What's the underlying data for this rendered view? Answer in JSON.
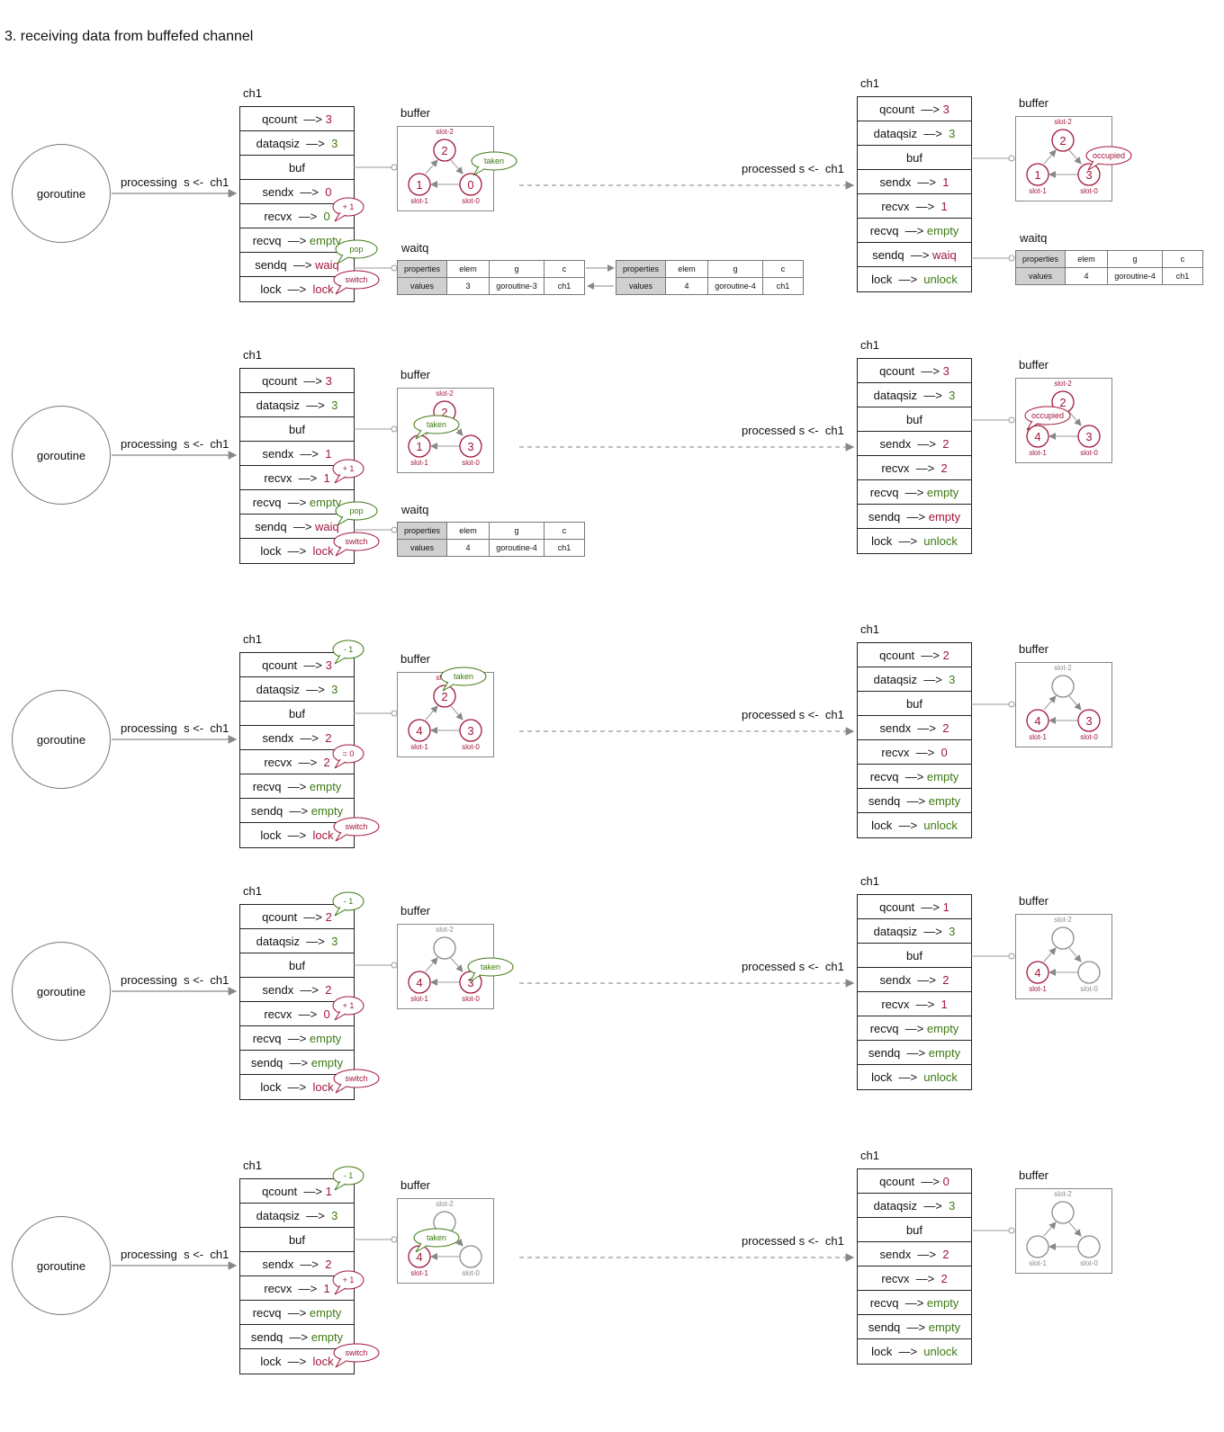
{
  "title": "3. receiving data from buffefed channel",
  "common": {
    "goroutine": "goroutine",
    "processing": "processing  s <-  ch1",
    "processed": "processed s <-  ch1",
    "ch1": "ch1",
    "buffer": "buffer",
    "waitq": "waitq",
    "slot2": "slot-2",
    "slot1": "slot-1",
    "slot0": "slot-0",
    "wq_properties": "properties",
    "wq_values": "values",
    "wq_elem": "elem",
    "wq_g": "g",
    "wq_c": "c"
  },
  "stages": [
    {
      "left": {
        "rows": [
          [
            "qcount  —> ",
            "3",
            "red"
          ],
          [
            "dataqsiz  —>  ",
            "3",
            "green"
          ],
          [
            "buf",
            "",
            ""
          ],
          [
            "sendx  —>  ",
            "0",
            "red"
          ],
          [
            "recvx  —>  ",
            "0",
            "green"
          ],
          [
            "recvq  —> ",
            "empty",
            "green"
          ],
          [
            "sendq  —> ",
            "waiq",
            "red"
          ],
          [
            "lock  —>  ",
            "lock",
            "red"
          ]
        ],
        "buffer": {
          "slot2": "2",
          "slot1": "1",
          "slot0": "0",
          "s2": "red",
          "s1": "red",
          "s0": "red"
        },
        "callouts": [
          {
            "text": "taken",
            "color": "green"
          },
          {
            "text": "+ 1",
            "color": "red"
          },
          {
            "text": "pop",
            "color": "green"
          },
          {
            "text": "switch",
            "color": "red"
          }
        ],
        "waitq": [
          {
            "elem": "3",
            "g": "goroutine-3",
            "c": "ch1"
          },
          {
            "elem": "4",
            "g": "goroutine-4",
            "c": "ch1"
          }
        ]
      },
      "right": {
        "rows": [
          [
            "qcount  —> ",
            "3",
            "red"
          ],
          [
            "dataqsiz  —>  ",
            "3",
            "green"
          ],
          [
            "buf",
            "",
            ""
          ],
          [
            "sendx  —>  ",
            "1",
            "red"
          ],
          [
            "recvx  —>  ",
            "1",
            "red"
          ],
          [
            "recvq  —> ",
            "empty",
            "green"
          ],
          [
            "sendq  —> ",
            "waiq",
            "red"
          ],
          [
            "lock  —>  ",
            "unlock",
            "green"
          ]
        ],
        "buffer": {
          "slot2": "2",
          "slot1": "1",
          "slot0": "3",
          "s2": "red",
          "s1": "red",
          "s0": "red"
        },
        "callouts": [
          {
            "text": "occupied",
            "color": "red"
          }
        ],
        "waitq": [
          {
            "elem": "4",
            "g": "goroutine-4",
            "c": "ch1"
          }
        ]
      }
    },
    {
      "left": {
        "rows": [
          [
            "qcount  —> ",
            "3",
            "red"
          ],
          [
            "dataqsiz  —>  ",
            "3",
            "green"
          ],
          [
            "buf",
            "",
            ""
          ],
          [
            "sendx  —>  ",
            "1",
            "red"
          ],
          [
            "recvx  —>  ",
            "1",
            "red"
          ],
          [
            "recvq  —> ",
            "empty",
            "green"
          ],
          [
            "sendq  —> ",
            "waiq",
            "red"
          ],
          [
            "lock  —>  ",
            "lock",
            "red"
          ]
        ],
        "buffer": {
          "slot2": "2",
          "slot1": "1",
          "slot0": "3",
          "s2": "red",
          "s1": "red",
          "s0": "red"
        },
        "callouts": [
          {
            "text": "taken",
            "color": "green"
          },
          {
            "text": "+ 1",
            "color": "red"
          },
          {
            "text": "pop",
            "color": "green"
          },
          {
            "text": "switch",
            "color": "red"
          }
        ],
        "waitq": [
          {
            "elem": "4",
            "g": "goroutine-4",
            "c": "ch1"
          }
        ]
      },
      "right": {
        "rows": [
          [
            "qcount  —> ",
            "3",
            "red"
          ],
          [
            "dataqsiz  —>  ",
            "3",
            "green"
          ],
          [
            "buf",
            "",
            ""
          ],
          [
            "sendx  —>  ",
            "2",
            "red"
          ],
          [
            "recvx  —>  ",
            "2",
            "red"
          ],
          [
            "recvq  —> ",
            "empty",
            "green"
          ],
          [
            "sendq  —> ",
            "empty",
            "red"
          ],
          [
            "lock  —>  ",
            "unlock",
            "green"
          ]
        ],
        "buffer": {
          "slot2": "2",
          "slot1": "4",
          "slot0": "3",
          "s2": "red",
          "s1": "red",
          "s0": "red"
        },
        "callouts": [
          {
            "text": "occupied",
            "color": "red"
          }
        ],
        "waitq": []
      }
    },
    {
      "left": {
        "rows": [
          [
            "qcount  —> ",
            "3",
            "red"
          ],
          [
            "dataqsiz  —>  ",
            "3",
            "green"
          ],
          [
            "buf",
            "",
            ""
          ],
          [
            "sendx  —>  ",
            "2",
            "red"
          ],
          [
            "recvx  —>  ",
            "2",
            "red"
          ],
          [
            "recvq  —> ",
            "empty",
            "green"
          ],
          [
            "sendq  —> ",
            "empty",
            "green"
          ],
          [
            "lock  —>  ",
            "lock",
            "red"
          ]
        ],
        "buffer": {
          "slot2": "2",
          "slot1": "4",
          "slot0": "3",
          "s2": "red",
          "s1": "red",
          "s0": "red"
        },
        "callouts": [
          {
            "text": "taken",
            "color": "green"
          },
          {
            "text": "- 1",
            "color": "green"
          },
          {
            "text": "= 0",
            "color": "red"
          },
          {
            "text": "switch",
            "color": "red"
          }
        ],
        "waitq": []
      },
      "right": {
        "rows": [
          [
            "qcount  —> ",
            "2",
            "red"
          ],
          [
            "dataqsiz  —>  ",
            "3",
            "green"
          ],
          [
            "buf",
            "",
            ""
          ],
          [
            "sendx  —>  ",
            "2",
            "red"
          ],
          [
            "recvx  —>  ",
            "0",
            "red"
          ],
          [
            "recvq  —> ",
            "empty",
            "green"
          ],
          [
            "sendq  —> ",
            "empty",
            "green"
          ],
          [
            "lock  —>  ",
            "unlock",
            "green"
          ]
        ],
        "buffer": {
          "slot2": "",
          "slot1": "4",
          "slot0": "3",
          "s2": "grey",
          "s1": "red",
          "s0": "red"
        },
        "callouts": [],
        "waitq": []
      }
    },
    {
      "left": {
        "rows": [
          [
            "qcount  —> ",
            "2",
            "red"
          ],
          [
            "dataqsiz  —>  ",
            "3",
            "green"
          ],
          [
            "buf",
            "",
            ""
          ],
          [
            "sendx  —>  ",
            "2",
            "red"
          ],
          [
            "recvx  —>  ",
            "0",
            "red"
          ],
          [
            "recvq  —> ",
            "empty",
            "green"
          ],
          [
            "sendq  —> ",
            "empty",
            "green"
          ],
          [
            "lock  —>  ",
            "lock",
            "red"
          ]
        ],
        "buffer": {
          "slot2": "",
          "slot1": "4",
          "slot0": "3",
          "s2": "grey",
          "s1": "red",
          "s0": "red"
        },
        "callouts": [
          {
            "text": "taken",
            "color": "green"
          },
          {
            "text": "- 1",
            "color": "green"
          },
          {
            "text": "+ 1",
            "color": "red"
          },
          {
            "text": "switch",
            "color": "red"
          }
        ],
        "waitq": []
      },
      "right": {
        "rows": [
          [
            "qcount  —> ",
            "1",
            "red"
          ],
          [
            "dataqsiz  —>  ",
            "3",
            "green"
          ],
          [
            "buf",
            "",
            ""
          ],
          [
            "sendx  —>  ",
            "2",
            "red"
          ],
          [
            "recvx  —>  ",
            "1",
            "red"
          ],
          [
            "recvq  —> ",
            "empty",
            "green"
          ],
          [
            "sendq  —> ",
            "empty",
            "green"
          ],
          [
            "lock  —>  ",
            "unlock",
            "green"
          ]
        ],
        "buffer": {
          "slot2": "",
          "slot1": "4",
          "slot0": "",
          "s2": "grey",
          "s1": "red",
          "s0": "grey"
        },
        "callouts": [],
        "waitq": []
      }
    },
    {
      "left": {
        "rows": [
          [
            "qcount  —> ",
            "1",
            "red"
          ],
          [
            "dataqsiz  —>  ",
            "3",
            "green"
          ],
          [
            "buf",
            "",
            ""
          ],
          [
            "sendx  —>  ",
            "2",
            "red"
          ],
          [
            "recvx  —>  ",
            "1",
            "red"
          ],
          [
            "recvq  —> ",
            "empty",
            "green"
          ],
          [
            "sendq  —> ",
            "empty",
            "green"
          ],
          [
            "lock  —>  ",
            "lock",
            "red"
          ]
        ],
        "buffer": {
          "slot2": "",
          "slot1": "4",
          "slot0": "",
          "s2": "grey",
          "s1": "red",
          "s0": "grey"
        },
        "callouts": [
          {
            "text": "taken",
            "color": "green"
          },
          {
            "text": "- 1",
            "color": "green"
          },
          {
            "text": "+ 1",
            "color": "red"
          },
          {
            "text": "switch",
            "color": "red"
          }
        ],
        "waitq": []
      },
      "right": {
        "rows": [
          [
            "qcount  —> ",
            "0",
            "red"
          ],
          [
            "dataqsiz  —>  ",
            "3",
            "green"
          ],
          [
            "buf",
            "",
            ""
          ],
          [
            "sendx  —>  ",
            "2",
            "red"
          ],
          [
            "recvx  —>  ",
            "2",
            "red"
          ],
          [
            "recvq  —> ",
            "empty",
            "green"
          ],
          [
            "sendq  —> ",
            "empty",
            "green"
          ],
          [
            "lock  —>  ",
            "unlock",
            "green"
          ]
        ],
        "buffer": {
          "slot2": "",
          "slot1": "",
          "slot0": "",
          "s2": "grey",
          "s1": "grey",
          "s0": "grey"
        },
        "callouts": [],
        "waitq": []
      }
    }
  ],
  "colors": {
    "red": "#a1173a",
    "green": "#3d7a12",
    "grey": "#8a8a8a",
    "line": "#888888"
  }
}
